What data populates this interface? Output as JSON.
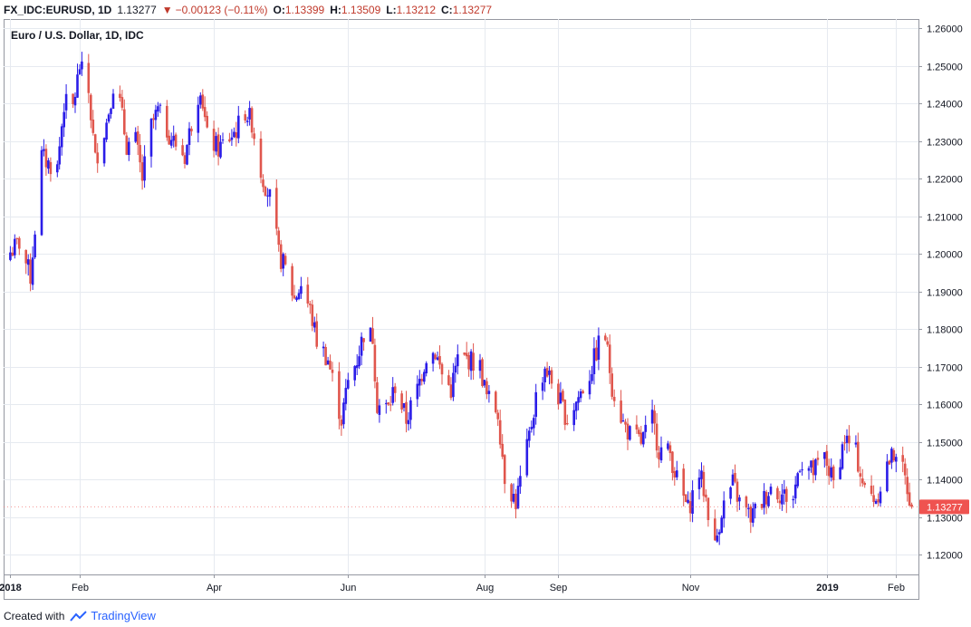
{
  "header": {
    "symbol": "FX_IDC:EURUSD, 1D",
    "last": "1.13277",
    "change": "−0.00123 (−0.11%)",
    "o_label": "O:",
    "o_value": "1.13399",
    "h_label": "H:",
    "h_value": "1.13509",
    "l_label": "L:",
    "l_value": "1.13212",
    "c_label": "C:",
    "c_value": "1.13277",
    "down_arrow": "▼"
  },
  "legend_title": "Euro / U.S. Dollar, 1D, IDC",
  "footer": {
    "created_with": "Created with",
    "brand": "TradingView"
  },
  "colors": {
    "up": "#2b1de8",
    "down": "#e0564d",
    "grid": "#e6eaf0",
    "axis_text": "#131722",
    "price_tag": "#ef5350"
  },
  "chart_data": {
    "type": "candlestick",
    "title": "Euro / U.S. Dollar, 1D, IDC",
    "y_range": [
      1.1148,
      1.2625
    ],
    "y_ticks": [
      "1.12000",
      "1.13000",
      "1.14000",
      "1.15000",
      "1.16000",
      "1.17000",
      "1.18000",
      "1.19000",
      "1.20000",
      "1.21000",
      "1.22000",
      "1.23000",
      "1.24000",
      "1.25000",
      "1.26000"
    ],
    "x_start": "2017-12-29",
    "x_end": "2019-02-11",
    "x_ticks": [
      {
        "date": "2018-01-01",
        "label": "2018",
        "bold": true
      },
      {
        "date": "2018-02-01",
        "label": "Feb",
        "bold": false
      },
      {
        "date": "2018-04-02",
        "label": "Apr",
        "bold": false
      },
      {
        "date": "2018-06-01",
        "label": "Jun",
        "bold": false
      },
      {
        "date": "2018-08-01",
        "label": "Aug",
        "bold": false
      },
      {
        "date": "2018-09-03",
        "label": "Sep",
        "bold": false
      },
      {
        "date": "2018-11-01",
        "label": "Nov",
        "bold": false
      },
      {
        "date": "2019-01-01",
        "label": "2019",
        "bold": true
      },
      {
        "date": "2019-02-01",
        "label": "Feb",
        "bold": false
      }
    ],
    "last_price": "1.13277",
    "closes": [
      [
        "2018-01-01",
        1.2005
      ],
      [
        "2018-01-05",
        1.203
      ],
      [
        "2018-01-10",
        1.194
      ],
      [
        "2018-01-15",
        1.226
      ],
      [
        "2018-01-18",
        1.224
      ],
      [
        "2018-01-22",
        1.223
      ],
      [
        "2018-01-25",
        1.24
      ],
      [
        "2018-01-29",
        1.239
      ],
      [
        "2018-02-01",
        1.25
      ],
      [
        "2018-02-05",
        1.243
      ],
      [
        "2018-02-08",
        1.225
      ],
      [
        "2018-02-13",
        1.235
      ],
      [
        "2018-02-16",
        1.245
      ],
      [
        "2018-02-19",
        1.24
      ],
      [
        "2018-02-22",
        1.229
      ],
      [
        "2018-02-26",
        1.23
      ],
      [
        "2018-03-01",
        1.22
      ],
      [
        "2018-03-05",
        1.234
      ],
      [
        "2018-03-08",
        1.238
      ],
      [
        "2018-03-12",
        1.233
      ],
      [
        "2018-03-15",
        1.23
      ],
      [
        "2018-03-20",
        1.226
      ],
      [
        "2018-03-23",
        1.235
      ],
      [
        "2018-03-27",
        1.245
      ],
      [
        "2018-03-30",
        1.231
      ],
      [
        "2018-04-04",
        1.228
      ],
      [
        "2018-04-09",
        1.231
      ],
      [
        "2018-04-12",
        1.233
      ],
      [
        "2018-04-16",
        1.238
      ],
      [
        "2018-04-19",
        1.235
      ],
      [
        "2018-04-23",
        1.222
      ],
      [
        "2018-04-27",
        1.215
      ],
      [
        "2018-05-01",
        1.2
      ],
      [
        "2018-05-04",
        1.196
      ],
      [
        "2018-05-08",
        1.188
      ],
      [
        "2018-05-11",
        1.192
      ],
      [
        "2018-05-15",
        1.185
      ],
      [
        "2018-05-18",
        1.177
      ],
      [
        "2018-05-23",
        1.172
      ],
      [
        "2018-05-29",
        1.156
      ],
      [
        "2018-06-01",
        1.166
      ],
      [
        "2018-06-05",
        1.172
      ],
      [
        "2018-06-08",
        1.179
      ],
      [
        "2018-06-12",
        1.178
      ],
      [
        "2018-06-14",
        1.16
      ],
      [
        "2018-06-19",
        1.159
      ],
      [
        "2018-06-22",
        1.165
      ],
      [
        "2018-06-27",
        1.156
      ],
      [
        "2018-07-02",
        1.164
      ],
      [
        "2018-07-06",
        1.173
      ],
      [
        "2018-07-10",
        1.174
      ],
      [
        "2018-07-13",
        1.168
      ],
      [
        "2018-07-17",
        1.164
      ],
      [
        "2018-07-20",
        1.172
      ],
      [
        "2018-07-25",
        1.172
      ],
      [
        "2018-07-30",
        1.17
      ],
      [
        "2018-08-02",
        1.162
      ],
      [
        "2018-08-07",
        1.158
      ],
      [
        "2018-08-10",
        1.141
      ],
      [
        "2018-08-15",
        1.134
      ],
      [
        "2018-08-20",
        1.148
      ],
      [
        "2018-08-24",
        1.162
      ],
      [
        "2018-08-28",
        1.17
      ],
      [
        "2018-09-03",
        1.162
      ],
      [
        "2018-09-07",
        1.156
      ],
      [
        "2018-09-12",
        1.162
      ],
      [
        "2018-09-17",
        1.168
      ],
      [
        "2018-09-21",
        1.176
      ],
      [
        "2018-09-24",
        1.178
      ],
      [
        "2018-09-27",
        1.165
      ],
      [
        "2018-10-02",
        1.155
      ],
      [
        "2018-10-05",
        1.152
      ],
      [
        "2018-10-10",
        1.15
      ],
      [
        "2018-10-15",
        1.156
      ],
      [
        "2018-10-18",
        1.148
      ],
      [
        "2018-10-23",
        1.147
      ],
      [
        "2018-10-26",
        1.14
      ],
      [
        "2018-10-31",
        1.132
      ],
      [
        "2018-11-05",
        1.142
      ],
      [
        "2018-11-08",
        1.135
      ],
      [
        "2018-11-12",
        1.122
      ],
      [
        "2018-11-15",
        1.132
      ],
      [
        "2018-11-20",
        1.139
      ],
      [
        "2018-11-23",
        1.134
      ],
      [
        "2018-11-28",
        1.13
      ],
      [
        "2018-12-03",
        1.134
      ],
      [
        "2018-12-07",
        1.138
      ],
      [
        "2018-12-12",
        1.136
      ],
      [
        "2018-12-17",
        1.135
      ],
      [
        "2018-12-20",
        1.145
      ],
      [
        "2018-12-26",
        1.142
      ],
      [
        "2018-12-31",
        1.146
      ],
      [
        "2019-01-04",
        1.139
      ],
      [
        "2019-01-09",
        1.151
      ],
      [
        "2019-01-14",
        1.147
      ],
      [
        "2019-01-18",
        1.137
      ],
      [
        "2019-01-23",
        1.135
      ],
      [
        "2019-01-28",
        1.144
      ],
      [
        "2019-02-01",
        1.148
      ],
      [
        "2019-02-06",
        1.138
      ],
      [
        "2019-02-08",
        1.13277
      ]
    ]
  }
}
